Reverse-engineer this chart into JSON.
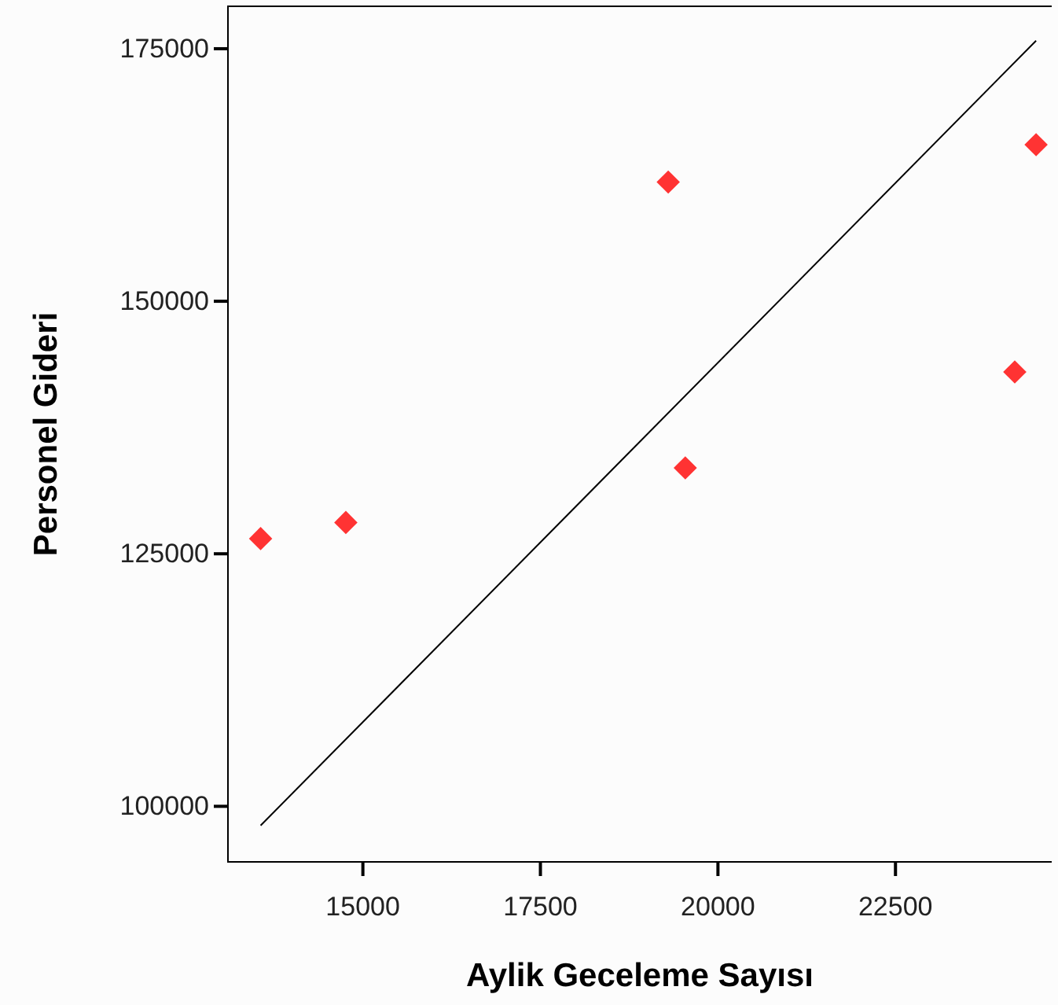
{
  "chart_data": {
    "type": "scatter",
    "xlabel": "Aylik Geceleme Sayısı",
    "ylabel": "Personel Gideri",
    "xlim": [
      13100,
      24700
    ],
    "xticks": [
      15000,
      17500,
      20000,
      22500
    ],
    "ylim": [
      94500,
      179200
    ],
    "yticks": [
      100000,
      125000,
      150000,
      175000
    ],
    "grid": false,
    "series": [
      {
        "marker": "diamond",
        "color": "#ff3333",
        "x": [
          13560,
          14760,
          19300,
          19540,
          24180,
          24480
        ],
        "values": [
          126500,
          128100,
          161800,
          133500,
          143000,
          165500
        ]
      },
      {
        "type": "line",
        "color": "#000000",
        "x": [
          13560,
          24480
        ],
        "values": [
          98100,
          175800
        ]
      }
    ]
  }
}
